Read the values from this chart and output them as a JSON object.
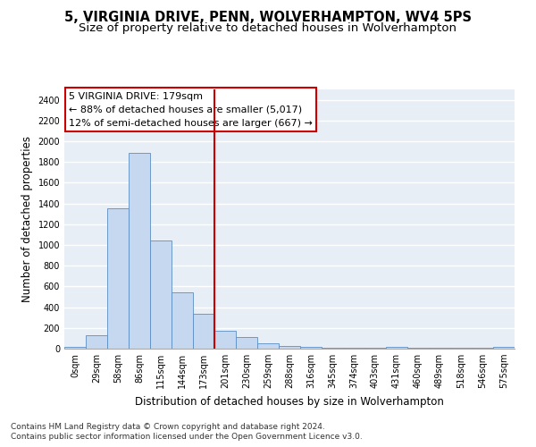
{
  "title1": "5, VIRGINIA DRIVE, PENN, WOLVERHAMPTON, WV4 5PS",
  "title2": "Size of property relative to detached houses in Wolverhampton",
  "xlabel": "Distribution of detached houses by size in Wolverhampton",
  "ylabel": "Number of detached properties",
  "footer1": "Contains HM Land Registry data © Crown copyright and database right 2024.",
  "footer2": "Contains public sector information licensed under the Open Government Licence v3.0.",
  "annotation_title": "5 VIRGINIA DRIVE: 179sqm",
  "annotation_line1": "← 88% of detached houses are smaller (5,017)",
  "annotation_line2": "12% of semi-detached houses are larger (667) →",
  "bar_labels": [
    "0sqm",
    "29sqm",
    "58sqm",
    "86sqm",
    "115sqm",
    "144sqm",
    "173sqm",
    "201sqm",
    "230sqm",
    "259sqm",
    "288sqm",
    "316sqm",
    "345sqm",
    "374sqm",
    "403sqm",
    "431sqm",
    "460sqm",
    "489sqm",
    "518sqm",
    "546sqm",
    "575sqm"
  ],
  "bar_values": [
    15,
    130,
    1350,
    1890,
    1040,
    540,
    335,
    170,
    110,
    55,
    30,
    20,
    5,
    5,
    5,
    20,
    5,
    5,
    5,
    5,
    15
  ],
  "bar_color": "#c5d8f0",
  "bar_edge_color": "#5b8ec4",
  "vline_index": 6,
  "vline_color": "#cc0000",
  "annotation_box_color": "#cc0000",
  "ylim": [
    0,
    2500
  ],
  "yticks": [
    0,
    200,
    400,
    600,
    800,
    1000,
    1200,
    1400,
    1600,
    1800,
    2000,
    2200,
    2400
  ],
  "bg_color": "#e8eef5",
  "grid_color": "#ffffff",
  "title_fontsize": 10.5,
  "subtitle_fontsize": 9.5,
  "axis_label_fontsize": 8.5,
  "tick_fontsize": 7,
  "footer_fontsize": 6.5,
  "annotation_fontsize": 8
}
